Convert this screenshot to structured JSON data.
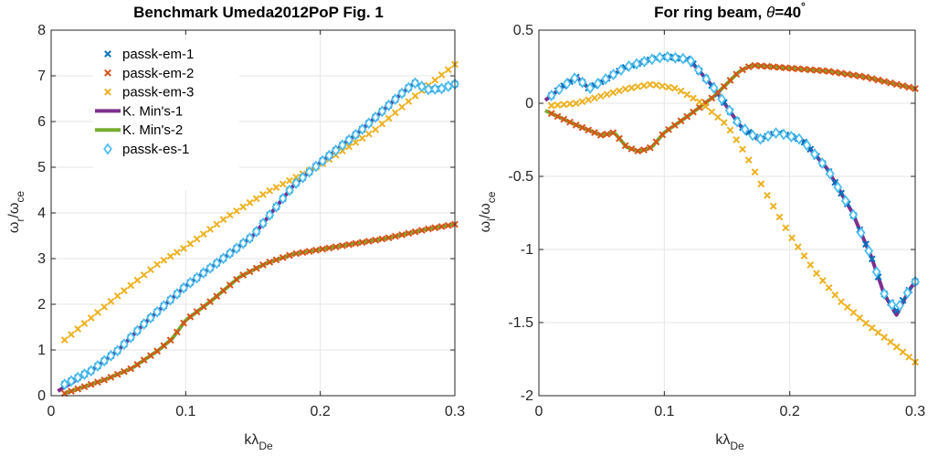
{
  "chart_data": [
    {
      "type": "line",
      "title": "Benchmark Umeda2012PoP Fig. 1",
      "xlabel": {
        "base": "kλ",
        "sub": "De"
      },
      "ylabel": {
        "p1": "ω",
        "s1": "r",
        "p2": "/ω",
        "s2": "ce"
      },
      "xlim": [
        0,
        0.3
      ],
      "ylim": [
        0,
        8
      ],
      "xticks": [
        0,
        0.1,
        0.2,
        0.3
      ],
      "xtick_labels": [
        "0",
        "0.1",
        "0.2",
        "0.3"
      ],
      "yticks": [
        0,
        1,
        2,
        3,
        4,
        5,
        6,
        7,
        8
      ],
      "ytick_labels": [
        "0",
        "1",
        "2",
        "3",
        "4",
        "5",
        "6",
        "7",
        "8"
      ],
      "grid": true,
      "legend_position": "top-left",
      "series": [
        {
          "name": "passk-em-1",
          "marker": "x",
          "color": "#0072BD",
          "x_range": [
            0.01,
            0.3
          ],
          "n": 60,
          "anchors": [
            [
              0.01,
              0.25
            ],
            [
              0.03,
              0.55
            ],
            [
              0.05,
              1.0
            ],
            [
              0.07,
              1.6
            ],
            [
              0.1,
              2.4
            ],
            [
              0.13,
              3.05
            ],
            [
              0.15,
              3.5
            ],
            [
              0.18,
              4.6
            ],
            [
              0.2,
              5.1
            ],
            [
              0.23,
              5.8
            ],
            [
              0.26,
              6.6
            ],
            [
              0.27,
              6.85
            ],
            [
              0.28,
              6.7
            ],
            [
              0.29,
              6.72
            ],
            [
              0.3,
              6.82
            ]
          ]
        },
        {
          "name": "passk-em-2",
          "marker": "x",
          "color": "#D95319",
          "x_range": [
            0.01,
            0.3
          ],
          "n": 60,
          "anchors": [
            [
              0.01,
              0.05
            ],
            [
              0.04,
              0.35
            ],
            [
              0.06,
              0.6
            ],
            [
              0.08,
              1.0
            ],
            [
              0.09,
              1.25
            ],
            [
              0.1,
              1.65
            ],
            [
              0.12,
              2.1
            ],
            [
              0.14,
              2.6
            ],
            [
              0.16,
              2.9
            ],
            [
              0.18,
              3.1
            ],
            [
              0.2,
              3.2
            ],
            [
              0.22,
              3.3
            ],
            [
              0.25,
              3.45
            ],
            [
              0.28,
              3.65
            ],
            [
              0.3,
              3.75
            ]
          ]
        },
        {
          "name": "passk-em-3",
          "marker": "x",
          "color": "#EDB120",
          "x_range": [
            0.01,
            0.3
          ],
          "n": 60,
          "anchors": [
            [
              0.01,
              1.22
            ],
            [
              0.05,
              2.2
            ],
            [
              0.08,
              2.9
            ],
            [
              0.1,
              3.25
            ],
            [
              0.13,
              3.9
            ],
            [
              0.16,
              4.45
            ],
            [
              0.2,
              5.05
            ],
            [
              0.24,
              5.8
            ],
            [
              0.27,
              6.55
            ],
            [
              0.3,
              7.25
            ]
          ]
        },
        {
          "name": "K. Min's-1",
          "marker": "line",
          "color": "#7E2F8E",
          "x_range": [
            0.005,
            0.3
          ],
          "n": 150,
          "anchors": [
            [
              0.005,
              0.1
            ],
            [
              0.03,
              0.55
            ],
            [
              0.05,
              1.0
            ],
            [
              0.07,
              1.6
            ],
            [
              0.1,
              2.4
            ],
            [
              0.13,
              3.05
            ],
            [
              0.15,
              3.5
            ],
            [
              0.18,
              4.6
            ],
            [
              0.2,
              5.1
            ],
            [
              0.23,
              5.8
            ],
            [
              0.26,
              6.6
            ],
            [
              0.27,
              6.85
            ],
            [
              0.28,
              6.7
            ],
            [
              0.29,
              6.72
            ],
            [
              0.3,
              6.82
            ]
          ]
        },
        {
          "name": "K. Min's-2",
          "marker": "line",
          "color": "#77AC30",
          "x_range": [
            0.01,
            0.3
          ],
          "n": 150,
          "anchors": [
            [
              0.01,
              0.05
            ],
            [
              0.04,
              0.35
            ],
            [
              0.06,
              0.6
            ],
            [
              0.08,
              1.0
            ],
            [
              0.09,
              1.25
            ],
            [
              0.1,
              1.65
            ],
            [
              0.12,
              2.1
            ],
            [
              0.14,
              2.6
            ],
            [
              0.16,
              2.9
            ],
            [
              0.18,
              3.1
            ],
            [
              0.2,
              3.2
            ],
            [
              0.22,
              3.3
            ],
            [
              0.25,
              3.45
            ],
            [
              0.28,
              3.65
            ],
            [
              0.3,
              3.75
            ]
          ]
        },
        {
          "name": "passk-es-1",
          "marker": "diamond",
          "color": "#4DBEEE",
          "x_range": [
            0.01,
            0.3
          ],
          "n": 60,
          "anchors": [
            [
              0.01,
              0.25
            ],
            [
              0.03,
              0.55
            ],
            [
              0.05,
              1.0
            ],
            [
              0.07,
              1.6
            ],
            [
              0.1,
              2.4
            ],
            [
              0.13,
              3.05
            ],
            [
              0.15,
              3.5
            ],
            [
              0.18,
              4.6
            ],
            [
              0.2,
              5.1
            ],
            [
              0.23,
              5.8
            ],
            [
              0.26,
              6.6
            ],
            [
              0.27,
              6.85
            ],
            [
              0.28,
              6.7
            ],
            [
              0.29,
              6.72
            ],
            [
              0.3,
              6.82
            ]
          ]
        }
      ]
    },
    {
      "type": "line",
      "title": {
        "text": "For ring beam, ",
        "theta": "θ",
        "value": "=40",
        "deg": "°"
      },
      "xlabel": {
        "base": "kλ",
        "sub": "De"
      },
      "ylabel": {
        "p1": "ω",
        "s1": "i",
        "p2": "/ω",
        "s2": "ce"
      },
      "xlim": [
        0,
        0.3
      ],
      "ylim": [
        -2,
        0.5
      ],
      "xticks": [
        0,
        0.1,
        0.2,
        0.3
      ],
      "xtick_labels": [
        "0",
        "0.1",
        "0.2",
        "0.3"
      ],
      "yticks": [
        -2,
        -1.5,
        -1,
        -0.5,
        0,
        0.5
      ],
      "ytick_labels": [
        "-2",
        "-1.5",
        "-1",
        "-0.5",
        "0",
        "0.5"
      ],
      "grid": true,
      "legend_position": "none",
      "series": [
        {
          "name": "passk-em-1",
          "marker": "x",
          "color": "#0072BD",
          "x_range": [
            0.01,
            0.3
          ],
          "n": 60,
          "anchors": [
            [
              0.005,
              0.02
            ],
            [
              0.02,
              0.12
            ],
            [
              0.03,
              0.18
            ],
            [
              0.04,
              0.1
            ],
            [
              0.05,
              0.15
            ],
            [
              0.07,
              0.25
            ],
            [
              0.09,
              0.3
            ],
            [
              0.1,
              0.32
            ],
            [
              0.12,
              0.3
            ],
            [
              0.14,
              0.1
            ],
            [
              0.16,
              -0.15
            ],
            [
              0.175,
              -0.25
            ],
            [
              0.19,
              -0.2
            ],
            [
              0.21,
              -0.25
            ],
            [
              0.23,
              -0.45
            ],
            [
              0.25,
              -0.75
            ],
            [
              0.265,
              -1.05
            ],
            [
              0.275,
              -1.3
            ],
            [
              0.285,
              -1.42
            ],
            [
              0.295,
              -1.28
            ],
            [
              0.3,
              -1.22
            ]
          ]
        },
        {
          "name": "passk-em-2",
          "marker": "x",
          "color": "#D95319",
          "x_range": [
            0.01,
            0.3
          ],
          "n": 60,
          "anchors": [
            [
              0.005,
              -0.05
            ],
            [
              0.03,
              -0.15
            ],
            [
              0.05,
              -0.22
            ],
            [
              0.06,
              -0.2
            ],
            [
              0.07,
              -0.3
            ],
            [
              0.08,
              -0.33
            ],
            [
              0.09,
              -0.3
            ],
            [
              0.1,
              -0.2
            ],
            [
              0.12,
              -0.08
            ],
            [
              0.14,
              0.05
            ],
            [
              0.16,
              0.22
            ],
            [
              0.17,
              0.26
            ],
            [
              0.2,
              0.24
            ],
            [
              0.23,
              0.22
            ],
            [
              0.26,
              0.18
            ],
            [
              0.3,
              0.1
            ]
          ]
        },
        {
          "name": "passk-em-3",
          "marker": "x",
          "color": "#EDB120",
          "x_range": [
            0.01,
            0.3
          ],
          "n": 60,
          "anchors": [
            [
              0.005,
              -0.02
            ],
            [
              0.03,
              0.0
            ],
            [
              0.05,
              0.05
            ],
            [
              0.07,
              0.1
            ],
            [
              0.09,
              0.13
            ],
            [
              0.11,
              0.1
            ],
            [
              0.13,
              0.0
            ],
            [
              0.15,
              -0.15
            ],
            [
              0.165,
              -0.35
            ],
            [
              0.18,
              -0.6
            ],
            [
              0.2,
              -0.9
            ],
            [
              0.22,
              -1.15
            ],
            [
              0.24,
              -1.35
            ],
            [
              0.26,
              -1.5
            ],
            [
              0.28,
              -1.63
            ],
            [
              0.3,
              -1.77
            ]
          ]
        },
        {
          "name": "K. Min's-1",
          "marker": "line",
          "color": "#7E2F8E",
          "x_range": [
            0.005,
            0.3
          ],
          "n": 160,
          "anchors": [
            [
              0.005,
              0.02
            ],
            [
              0.02,
              0.12
            ],
            [
              0.03,
              0.18
            ],
            [
              0.04,
              0.1
            ],
            [
              0.05,
              0.15
            ],
            [
              0.07,
              0.25
            ],
            [
              0.09,
              0.3
            ],
            [
              0.1,
              0.32
            ],
            [
              0.12,
              0.3
            ],
            [
              0.14,
              0.1
            ],
            [
              0.16,
              -0.15
            ],
            [
              0.175,
              -0.25
            ],
            [
              0.19,
              -0.2
            ],
            [
              0.21,
              -0.25
            ],
            [
              0.23,
              -0.45
            ],
            [
              0.25,
              -0.75
            ],
            [
              0.265,
              -1.05
            ],
            [
              0.275,
              -1.3
            ],
            [
              0.285,
              -1.45
            ],
            [
              0.295,
              -1.28
            ],
            [
              0.3,
              -1.22
            ]
          ]
        },
        {
          "name": "K. Min's-2",
          "marker": "line",
          "color": "#77AC30",
          "x_range": [
            0.005,
            0.3
          ],
          "n": 160,
          "anchors": [
            [
              0.005,
              -0.05
            ],
            [
              0.03,
              -0.15
            ],
            [
              0.05,
              -0.22
            ],
            [
              0.06,
              -0.2
            ],
            [
              0.07,
              -0.3
            ],
            [
              0.08,
              -0.33
            ],
            [
              0.09,
              -0.3
            ],
            [
              0.1,
              -0.2
            ],
            [
              0.12,
              -0.08
            ],
            [
              0.14,
              0.05
            ],
            [
              0.16,
              0.22
            ],
            [
              0.17,
              0.26
            ],
            [
              0.2,
              0.24
            ],
            [
              0.23,
              0.22
            ],
            [
              0.26,
              0.18
            ],
            [
              0.3,
              0.1
            ]
          ]
        },
        {
          "name": "passk-es-1",
          "marker": "diamond",
          "color": "#4DBEEE",
          "x_range": [
            0.01,
            0.3
          ],
          "n": 48,
          "anchors": [
            [
              0.005,
              0.02
            ],
            [
              0.02,
              0.12
            ],
            [
              0.03,
              0.18
            ],
            [
              0.04,
              0.1
            ],
            [
              0.05,
              0.15
            ],
            [
              0.07,
              0.25
            ],
            [
              0.09,
              0.3
            ],
            [
              0.1,
              0.32
            ],
            [
              0.12,
              0.3
            ],
            [
              0.14,
              0.1
            ],
            [
              0.16,
              -0.15
            ],
            [
              0.175,
              -0.25
            ],
            [
              0.19,
              -0.2
            ],
            [
              0.21,
              -0.25
            ],
            [
              0.23,
              -0.45
            ],
            [
              0.25,
              -0.75
            ],
            [
              0.265,
              -1.05
            ],
            [
              0.275,
              -1.3
            ],
            [
              0.285,
              -1.42
            ],
            [
              0.295,
              -1.28
            ],
            [
              0.3,
              -1.22
            ]
          ]
        }
      ]
    }
  ]
}
